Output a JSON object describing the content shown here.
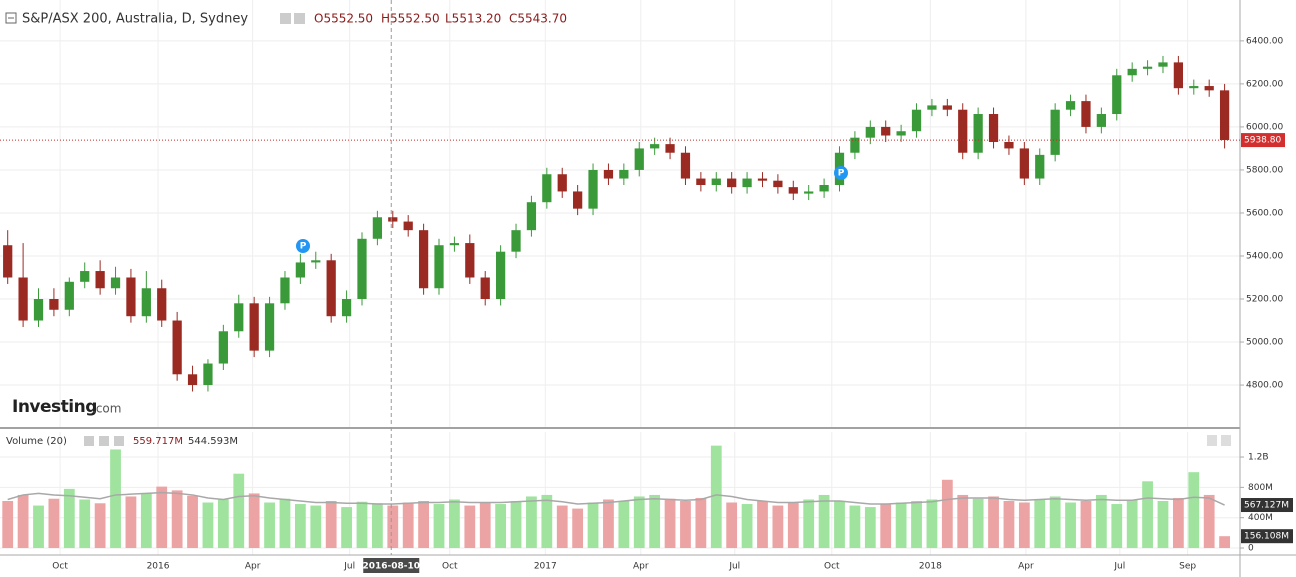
{
  "chart_data": [
    {
      "type": "candlestick",
      "title": "S&P/ASX 200, Australia, D, Sydney",
      "ohlc": [
        "O5552.50",
        "H5552.50",
        "L5513.20",
        "C5543.70"
      ],
      "up_color": "#3a9a3a",
      "down_color": "#9b2a22",
      "open": [
        5450,
        5300,
        5100,
        5200,
        5150,
        5280,
        5330,
        5250,
        5300,
        5120,
        5250,
        5100,
        4850,
        4800,
        4900,
        5050,
        5180,
        4960,
        5180,
        5300,
        5370,
        5380,
        5120,
        5200,
        5480,
        5580,
        5560,
        5520,
        5250,
        5450,
        5460,
        5300,
        5200,
        5420,
        5520,
        5650,
        5780,
        5700,
        5620,
        5800,
        5760,
        5800,
        5900,
        5920,
        5880,
        5760,
        5730,
        5760,
        5720,
        5760,
        5750,
        5720,
        5690,
        5700,
        5730,
        5880,
        5950,
        6000,
        5960,
        5980,
        6080,
        6100,
        6080,
        5880,
        6060,
        5930,
        5900,
        5760,
        5870,
        6080,
        6120,
        6000,
        6060,
        6240,
        6270,
        6280,
        6300,
        6180,
        6190,
        6170
      ],
      "high": [
        5520,
        5460,
        5250,
        5250,
        5300,
        5370,
        5380,
        5350,
        5340,
        5330,
        5290,
        5140,
        4890,
        4920,
        5080,
        5220,
        5210,
        5210,
        5330,
        5410,
        5420,
        5410,
        5240,
        5510,
        5610,
        5610,
        5590,
        5550,
        5480,
        5490,
        5500,
        5330,
        5450,
        5550,
        5680,
        5810,
        5810,
        5730,
        5830,
        5830,
        5830,
        5930,
        5950,
        5950,
        5910,
        5790,
        5790,
        5790,
        5790,
        5790,
        5780,
        5750,
        5730,
        5760,
        5910,
        5980,
        6030,
        6030,
        6010,
        6110,
        6130,
        6130,
        6110,
        6090,
        6090,
        5960,
        5930,
        5900,
        6110,
        6150,
        6150,
        6090,
        6270,
        6300,
        6310,
        6330,
        6330,
        6220,
        6220,
        6200
      ],
      "low": [
        5270,
        5070,
        5070,
        5120,
        5120,
        5250,
        5220,
        5220,
        5090,
        5090,
        5070,
        4820,
        4770,
        4770,
        4870,
        5020,
        4930,
        4930,
        5150,
        5270,
        5340,
        5090,
        5090,
        5170,
        5450,
        5530,
        5490,
        5220,
        5220,
        5420,
        5270,
        5170,
        5170,
        5390,
        5490,
        5620,
        5670,
        5590,
        5590,
        5730,
        5730,
        5770,
        5870,
        5850,
        5730,
        5700,
        5700,
        5690,
        5690,
        5720,
        5690,
        5660,
        5660,
        5670,
        5700,
        5850,
        5920,
        5930,
        5930,
        5950,
        6050,
        6050,
        5850,
        5850,
        5900,
        5870,
        5730,
        5730,
        5840,
        6050,
        5970,
        5970,
        6030,
        6210,
        6240,
        6250,
        6150,
        6150,
        6140,
        5900
      ],
      "close": [
        5300,
        5100,
        5200,
        5150,
        5280,
        5330,
        5250,
        5300,
        5120,
        5250,
        5100,
        4850,
        4800,
        4900,
        5050,
        5180,
        4960,
        5180,
        5300,
        5370,
        5380,
        5120,
        5200,
        5480,
        5580,
        5560,
        5520,
        5250,
        5450,
        5460,
        5300,
        5200,
        5420,
        5520,
        5650,
        5780,
        5700,
        5620,
        5800,
        5760,
        5800,
        5900,
        5920,
        5880,
        5760,
        5730,
        5760,
        5720,
        5760,
        5750,
        5720,
        5690,
        5700,
        5730,
        5880,
        5950,
        6000,
        5960,
        5980,
        6080,
        6100,
        6080,
        5880,
        6060,
        5930,
        5900,
        5760,
        5870,
        6080,
        6120,
        6000,
        6060,
        6240,
        6270,
        6280,
        6300,
        6180,
        6190,
        6170,
        5939
      ],
      "ylim": [
        4605,
        6590
      ],
      "yticks": [
        {
          "value": 4800,
          "label": "4800.00"
        },
        {
          "value": 5000,
          "label": "5000.00"
        },
        {
          "value": 5200,
          "label": "5200.00"
        },
        {
          "value": 5400,
          "label": "5400.00"
        },
        {
          "value": 5600,
          "label": "5600.00"
        },
        {
          "value": 5800,
          "label": "5800.00"
        },
        {
          "value": 6000,
          "label": "6000.00"
        },
        {
          "value": 6200,
          "label": "6200.00"
        },
        {
          "value": 6400,
          "label": "6400.00"
        }
      ],
      "last": {
        "value": 5938.8,
        "label": "5938.80"
      },
      "xlim": [
        -0.5,
        80
      ],
      "xticks": [
        {
          "value": 3.4,
          "label": "Oct"
        },
        {
          "value": 9.76,
          "label": "2016"
        },
        {
          "value": 15.9,
          "label": "Apr"
        },
        {
          "value": 22.2,
          "label": "Jul"
        },
        {
          "value": 28.7,
          "label": "Oct"
        },
        {
          "value": 34.9,
          "label": "2017"
        },
        {
          "value": 41.1,
          "label": "Apr"
        },
        {
          "value": 47.2,
          "label": "Jul"
        },
        {
          "value": 53.5,
          "label": "Oct"
        },
        {
          "value": 59.9,
          "label": "2018"
        },
        {
          "value": 66.1,
          "label": "Apr"
        },
        {
          "value": 72.2,
          "label": "Jul"
        },
        {
          "value": 76.6,
          "label": "Sep"
        }
      ],
      "crosshair": {
        "value": 24.9,
        "label": "2016-08-10"
      },
      "events": [
        "P",
        "P"
      ],
      "logo": [
        "Investing",
        ".com"
      ],
      "grid": true
    },
    {
      "type": "bar",
      "title": "Volume (20)",
      "readout": [
        "559.717M",
        "544.593M"
      ],
      "up_color": "#9fe39f",
      "down_color": "#eba3a3",
      "ma_color": "#a8a8a8",
      "values": [
        620,
        700,
        560,
        650,
        780,
        640,
        590,
        1300,
        680,
        720,
        810,
        760,
        690,
        600,
        640,
        980,
        720,
        600,
        650,
        580,
        560,
        620,
        540,
        610,
        590,
        560,
        600,
        620,
        580,
        640,
        560,
        600,
        580,
        620,
        680,
        700,
        560,
        520,
        600,
        640,
        620,
        680,
        700,
        650,
        620,
        660,
        1350,
        600,
        580,
        620,
        560,
        600,
        640,
        700,
        620,
        560,
        540,
        580,
        600,
        620,
        640,
        900,
        700,
        650,
        680,
        620,
        600,
        640,
        680,
        600,
        620,
        700,
        580,
        640,
        880,
        620,
        660,
        1000,
        700,
        156
      ],
      "ma": [
        640,
        700,
        720,
        700,
        690,
        670,
        650,
        700,
        710,
        720,
        730,
        720,
        700,
        660,
        640,
        680,
        690,
        660,
        640,
        620,
        600,
        600,
        590,
        590,
        580,
        580,
        590,
        600,
        600,
        610,
        600,
        600,
        600,
        610,
        620,
        630,
        610,
        580,
        590,
        600,
        620,
        640,
        650,
        640,
        630,
        640,
        700,
        680,
        640,
        620,
        600,
        600,
        610,
        620,
        620,
        600,
        580,
        580,
        590,
        600,
        610,
        640,
        660,
        660,
        660,
        640,
        630,
        640,
        650,
        640,
        630,
        640,
        630,
        630,
        660,
        650,
        640,
        670,
        660,
        567
      ],
      "ma_label": {
        "value": 567.127,
        "label": "567.127M"
      },
      "last_label": {
        "value": 156.108,
        "label": "156.108M"
      },
      "ylim": [
        -92,
        1530
      ],
      "yticks": [
        0,
        {
          "value": 400,
          "label": "400M"
        },
        {
          "value": 800,
          "label": "800M"
        },
        {
          "value": 1200,
          "label": "1.2B"
        }
      ]
    }
  ]
}
